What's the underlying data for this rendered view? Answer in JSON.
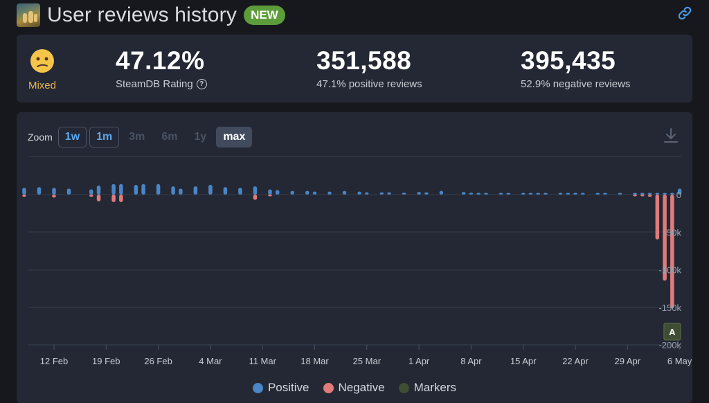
{
  "header": {
    "title": "User reviews history",
    "badge": "NEW",
    "link_icon": "link-icon",
    "game_icon": "game-capsule-icon"
  },
  "stats": {
    "mood_emoji": "😕",
    "mood_label": "Mixed",
    "rating_value": "47.12%",
    "rating_label": "SteamDB Rating",
    "help_glyph": "?",
    "positive_value": "351,588",
    "positive_label": "47.1% positive reviews",
    "negative_value": "395,435",
    "negative_label": "52.9% negative reviews"
  },
  "zoom": {
    "label": "Zoom",
    "options": [
      "1w",
      "1m",
      "3m",
      "6m",
      "1y",
      "max"
    ],
    "active": "max"
  },
  "colors": {
    "positive": "#4a86c6",
    "negative": "#e07b7b",
    "markers": "#3f4d33",
    "mixed": "#e8b74a",
    "badge": "#5d9c3a"
  },
  "legend": [
    "Positive",
    "Negative",
    "Markers"
  ],
  "chart_data": {
    "type": "bar",
    "x_ticks": [
      "12 Feb",
      "19 Feb",
      "26 Feb",
      "4 Mar",
      "11 Mar",
      "18 Mar",
      "25 Mar",
      "1 Apr",
      "8 Apr",
      "15 Apr",
      "22 Apr",
      "29 Apr",
      "6 May"
    ],
    "y_ticks": [
      "0",
      "-50k",
      "-100k",
      "-150k",
      "-200k"
    ],
    "ylim": [
      -200000,
      20000
    ],
    "markers": [
      {
        "label": "A",
        "date": "5 May"
      }
    ],
    "series": [
      {
        "name": "Positive",
        "values": [
          [
            "2024-02-08",
            9000
          ],
          [
            "2024-02-10",
            10000
          ],
          [
            "2024-02-12",
            9000
          ],
          [
            "2024-02-14",
            8000
          ],
          [
            "2024-02-17",
            7000
          ],
          [
            "2024-02-18",
            12000
          ],
          [
            "2024-02-20",
            14000
          ],
          [
            "2024-02-21",
            14000
          ],
          [
            "2024-02-23",
            13000
          ],
          [
            "2024-02-24",
            14000
          ],
          [
            "2024-02-26",
            14000
          ],
          [
            "2024-02-28",
            11000
          ],
          [
            "2024-02-29",
            8000
          ],
          [
            "2024-03-02",
            11000
          ],
          [
            "2024-03-04",
            13000
          ],
          [
            "2024-03-06",
            10000
          ],
          [
            "2024-03-08",
            9000
          ],
          [
            "2024-03-10",
            11000
          ],
          [
            "2024-03-12",
            7000
          ],
          [
            "2024-03-13",
            6000
          ],
          [
            "2024-03-15",
            5000
          ],
          [
            "2024-03-17",
            5000
          ],
          [
            "2024-03-18",
            4000
          ],
          [
            "2024-03-20",
            4000
          ],
          [
            "2024-03-22",
            5000
          ],
          [
            "2024-03-24",
            4000
          ],
          [
            "2024-03-25",
            3000
          ],
          [
            "2024-03-27",
            3000
          ],
          [
            "2024-03-28",
            3000
          ],
          [
            "2024-03-30",
            2500
          ],
          [
            "2024-04-01",
            3500
          ],
          [
            "2024-04-02",
            3000
          ],
          [
            "2024-04-04",
            5000
          ],
          [
            "2024-04-07",
            3500
          ],
          [
            "2024-04-08",
            2500
          ],
          [
            "2024-04-09",
            2000
          ],
          [
            "2024-04-10",
            2000
          ],
          [
            "2024-04-12",
            1500
          ],
          [
            "2024-04-13",
            1200
          ],
          [
            "2024-04-15",
            1000
          ],
          [
            "2024-04-16",
            1000
          ],
          [
            "2024-04-17",
            900
          ],
          [
            "2024-04-18",
            900
          ],
          [
            "2024-04-20",
            800
          ],
          [
            "2024-04-21",
            700
          ],
          [
            "2024-04-22",
            700
          ],
          [
            "2024-04-23",
            600
          ],
          [
            "2024-04-25",
            500
          ],
          [
            "2024-04-26",
            500
          ],
          [
            "2024-04-28",
            400
          ],
          [
            "2024-04-30",
            400
          ],
          [
            "2024-05-01",
            400
          ],
          [
            "2024-05-02",
            400
          ],
          [
            "2024-05-03",
            500
          ],
          [
            "2024-05-04",
            600
          ],
          [
            "2024-05-05",
            900
          ],
          [
            "2024-05-06",
            8000
          ]
        ]
      },
      {
        "name": "Negative",
        "values": [
          [
            "2024-02-08",
            -3000
          ],
          [
            "2024-02-12",
            -4000
          ],
          [
            "2024-02-17",
            -3000
          ],
          [
            "2024-02-18",
            -9000
          ],
          [
            "2024-02-20",
            -10000
          ],
          [
            "2024-02-21",
            -10000
          ],
          [
            "2024-03-10",
            -7000
          ],
          [
            "2024-03-12",
            -2000
          ],
          [
            "2024-04-30",
            -2000
          ],
          [
            "2024-05-01",
            -2000
          ],
          [
            "2024-05-02",
            -3000
          ],
          [
            "2024-05-03",
            -60000
          ],
          [
            "2024-05-04",
            -115000
          ],
          [
            "2024-05-05",
            -152000
          ]
        ]
      }
    ]
  }
}
